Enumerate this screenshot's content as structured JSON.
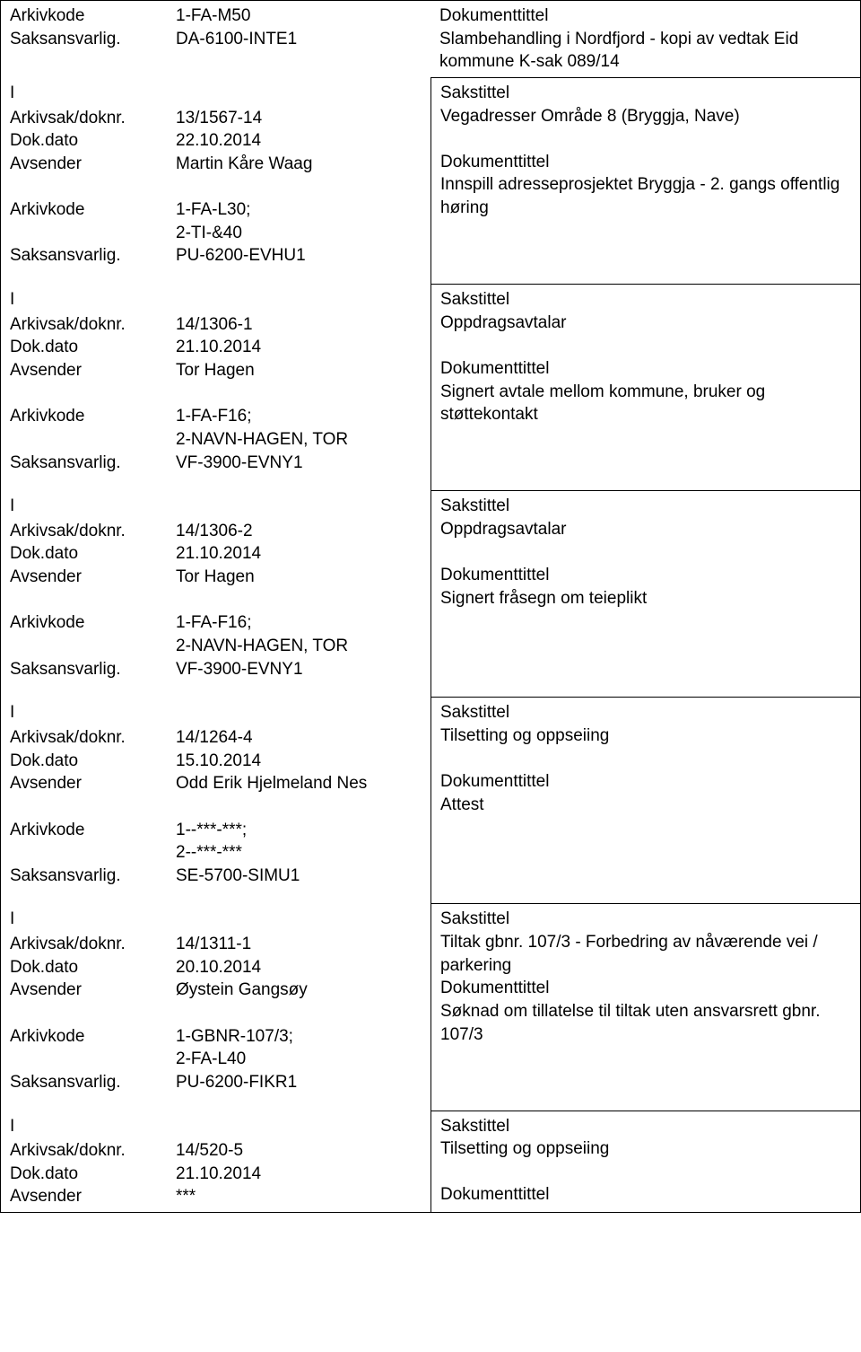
{
  "entries": [
    {
      "left": [
        {
          "label": "Arkivkode",
          "value": "1-FA-M50"
        },
        {
          "label": "Saksansvarlig.",
          "value": "DA-6100-INTE1"
        }
      ],
      "rightTitle": "Dokumenttittel",
      "rightText": "Slambehandling i Nordfjord - kopi av vedtak Eid kommune K-sak 089/14",
      "isTop": true
    },
    {
      "iMarker": "I",
      "left": [
        {
          "label": "Arkivsak/doknr.",
          "value": "13/1567-14"
        },
        {
          "label": "Dok.dato",
          "value": "22.10.2014"
        },
        {
          "label": "Avsender",
          "value": "Martin Kåre Waag"
        },
        {
          "label": "",
          "value": ""
        },
        {
          "label": "Arkivkode",
          "value": "1-FA-L30;"
        },
        {
          "label": "",
          "value": "2-TI-&40"
        },
        {
          "label": "Saksansvarlig.",
          "value": "PU-6200-EVHU1"
        }
      ],
      "rightLines": [
        "Sakstittel",
        "Vegadresser Område 8 (Bryggja, Nave)",
        "",
        "Dokumenttittel",
        "Innspill adresseprosjektet Bryggja - 2. gangs offentlig høring"
      ]
    },
    {
      "iMarker": "I",
      "left": [
        {
          "label": "Arkivsak/doknr.",
          "value": "14/1306-1"
        },
        {
          "label": "Dok.dato",
          "value": "21.10.2014"
        },
        {
          "label": "Avsender",
          "value": "Tor Hagen"
        },
        {
          "label": "",
          "value": ""
        },
        {
          "label": "Arkivkode",
          "value": "1-FA-F16;"
        },
        {
          "label": "",
          "value": "2-NAVN-HAGEN, TOR"
        },
        {
          "label": "Saksansvarlig.",
          "value": "VF-3900-EVNY1"
        }
      ],
      "rightLines": [
        "Sakstittel",
        "Oppdragsavtalar",
        "",
        "Dokumenttittel",
        "Signert avtale mellom kommune, bruker og støttekontakt"
      ]
    },
    {
      "iMarker": "I",
      "left": [
        {
          "label": "Arkivsak/doknr.",
          "value": "14/1306-2"
        },
        {
          "label": "Dok.dato",
          "value": "21.10.2014"
        },
        {
          "label": "Avsender",
          "value": "Tor Hagen"
        },
        {
          "label": "",
          "value": ""
        },
        {
          "label": "Arkivkode",
          "value": "1-FA-F16;"
        },
        {
          "label": "",
          "value": "2-NAVN-HAGEN, TOR"
        },
        {
          "label": "Saksansvarlig.",
          "value": "VF-3900-EVNY1"
        }
      ],
      "rightLines": [
        "Sakstittel",
        "Oppdragsavtalar",
        "",
        "Dokumenttittel",
        "Signert fråsegn om teieplikt"
      ]
    },
    {
      "iMarker": "I",
      "left": [
        {
          "label": "Arkivsak/doknr.",
          "value": "14/1264-4"
        },
        {
          "label": "Dok.dato",
          "value": "15.10.2014"
        },
        {
          "label": "Avsender",
          "value": "Odd Erik Hjelmeland Nes"
        },
        {
          "label": "",
          "value": ""
        },
        {
          "label": "Arkivkode",
          "value": "1--***-***;"
        },
        {
          "label": "",
          "value": "2--***-***"
        },
        {
          "label": "Saksansvarlig.",
          "value": "SE-5700-SIMU1"
        }
      ],
      "rightLines": [
        "Sakstittel",
        "Tilsetting og oppseiing",
        "",
        "Dokumenttittel",
        "Attest"
      ]
    },
    {
      "iMarker": "I",
      "left": [
        {
          "label": "Arkivsak/doknr.",
          "value": "14/1311-1"
        },
        {
          "label": "Dok.dato",
          "value": "20.10.2014"
        },
        {
          "label": "Avsender",
          "value": "Øystein Gangsøy"
        },
        {
          "label": "",
          "value": ""
        },
        {
          "label": "Arkivkode",
          "value": "1-GBNR-107/3;"
        },
        {
          "label": "",
          "value": "2-FA-L40"
        },
        {
          "label": "Saksansvarlig.",
          "value": "PU-6200-FIKR1"
        }
      ],
      "rightLines": [
        "Sakstittel",
        "Tiltak gbnr. 107/3 - Forbedring av nåværende vei / parkering",
        "Dokumenttittel",
        "Søknad om tillatelse til tiltak uten ansvarsrett gbnr. 107/3"
      ]
    },
    {
      "iMarker": "I",
      "left": [
        {
          "label": "Arkivsak/doknr.",
          "value": "14/520-5"
        },
        {
          "label": "Dok.dato",
          "value": "21.10.2014"
        },
        {
          "label": "Avsender",
          "value": "***"
        }
      ],
      "rightLines": [
        "Sakstittel",
        "Tilsetting og oppseiing",
        "",
        "Dokumenttittel"
      ],
      "isLast": true
    }
  ]
}
